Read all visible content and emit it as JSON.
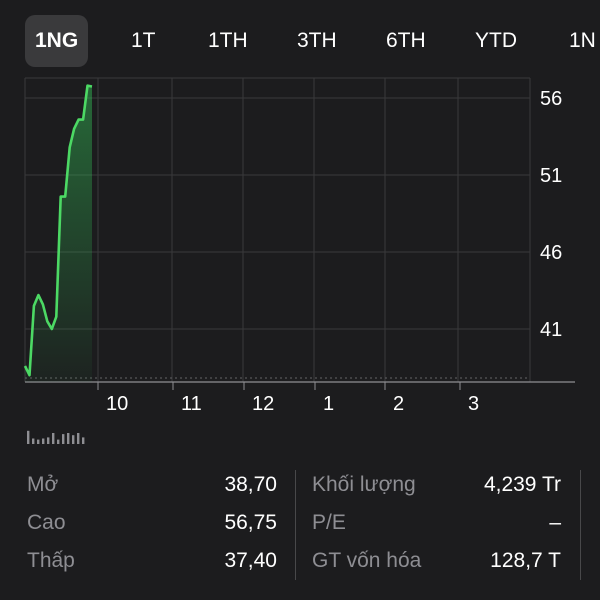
{
  "tabs": [
    {
      "label": "1NG",
      "active": true
    },
    {
      "label": "1T"
    },
    {
      "label": "1TH"
    },
    {
      "label": "3TH"
    },
    {
      "label": "6TH"
    },
    {
      "label": "YTD"
    },
    {
      "label": "1N"
    }
  ],
  "chart_data": {
    "type": "area",
    "y_ticks": [
      "56",
      "51",
      "46",
      "41"
    ],
    "x_ticks": [
      "10",
      "11",
      "12",
      "1",
      "2",
      "3"
    ],
    "ylim": [
      36,
      57.5
    ],
    "grid": true,
    "color": "#4cd964",
    "series": [
      {
        "values": [
          38.6,
          38.0,
          42.5,
          43.2,
          42.6,
          41.5,
          41.0,
          41.8,
          49.6,
          49.6,
          52.8,
          54.0,
          54.6,
          54.6,
          56.8,
          56.75
        ]
      }
    ],
    "volume": [
      0.6,
      0.25,
      0.2,
      0.25,
      0.3,
      0.5,
      0.2,
      0.45,
      0.5,
      0.4,
      0.5,
      0.3
    ]
  },
  "stats": {
    "open_label": "Mở",
    "open_value": "38,70",
    "high_label": "Cao",
    "high_value": "56,75",
    "low_label": "Thấp",
    "low_value": "37,40",
    "volume_label": "Khối lượng",
    "volume_value": "4,239 Tr",
    "pe_label": "P/E",
    "pe_value": "–",
    "mcap_label": "GT vốn hóa",
    "mcap_value": "128,7 T"
  }
}
